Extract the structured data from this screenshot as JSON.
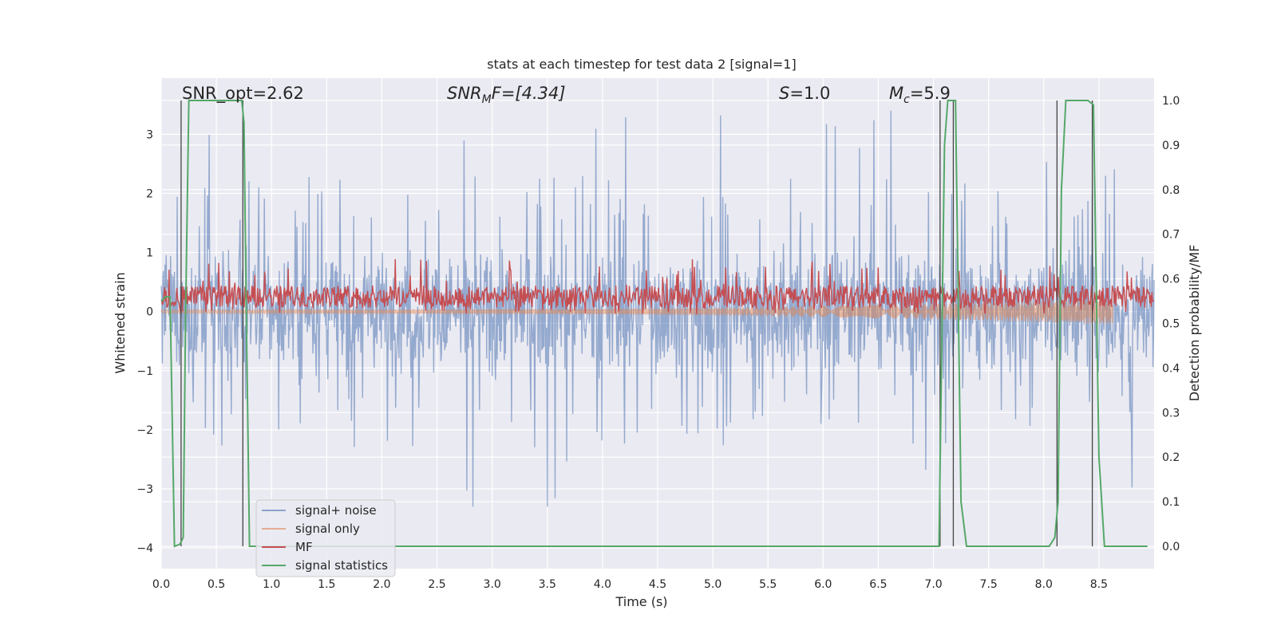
{
  "chart_data": {
    "type": "line",
    "title": "stats at each timestep for test data 2 [signal=1]",
    "xlabel": "Time (s)",
    "ylabel_left": "Whitened strain",
    "ylabel_right": "Detection probability/MF",
    "xlim": [
      0.0,
      9.0
    ],
    "ylim_left": [
      -4.35,
      3.95
    ],
    "ylim_right": [
      -0.05,
      1.05
    ],
    "x_ticks": [
      "0.0",
      "0.5",
      "1.0",
      "1.5",
      "2.0",
      "2.5",
      "3.0",
      "3.5",
      "4.0",
      "4.5",
      "5.0",
      "5.5",
      "6.0",
      "6.5",
      "7.0",
      "7.5",
      "8.0",
      "8.5"
    ],
    "y_ticks_left": [
      "3",
      "2",
      "1",
      "0",
      "−1",
      "−2",
      "−3",
      "−4"
    ],
    "y_ticks_right": [
      "1.0",
      "0.9",
      "0.8",
      "0.7",
      "0.6",
      "0.5",
      "0.4",
      "0.3",
      "0.2",
      "0.1",
      "0.0"
    ],
    "grid": true,
    "legend_position": "lower-left",
    "annotations": {
      "snr_opt": "SNR_opt=2.62",
      "snr_mf_base": "SNR",
      "snr_mf_sub": "M",
      "snr_mf_rest": "F=[4.34]",
      "s_var": "S",
      "s_rest": "=1.0",
      "mc_var": "M",
      "mc_sub": "c",
      "mc_rest": "=5.9"
    },
    "series": [
      {
        "name": "signal+ noise",
        "color": "#4c72b0",
        "axis": "left",
        "envelope_core": [
          -1.7,
          1.3
        ],
        "peak_range": [
          -3.3,
          3.6
        ]
      },
      {
        "name": "signal only",
        "color": "#dd8452",
        "axis": "left",
        "amplitude_start": 0.03,
        "amplitude_end": 0.22,
        "end_time": 8.63
      },
      {
        "name": "MF",
        "color": "#c44e52",
        "axis": "right",
        "baseline": 0.55,
        "band": [
          0.535,
          0.585
        ],
        "peak_max": 0.645
      },
      {
        "name": "signal statistics",
        "color": "#55a868",
        "axis": "right",
        "x": [
          0.0,
          0.04,
          0.08,
          0.12,
          0.17,
          0.2,
          0.22,
          0.25,
          0.3,
          0.35,
          0.4,
          0.45,
          0.5,
          0.55,
          0.6,
          0.65,
          0.7,
          0.73,
          0.75,
          0.77,
          0.8,
          0.85,
          0.9,
          1.0,
          2.0,
          3.0,
          4.0,
          5.0,
          6.0,
          7.0,
          7.05,
          7.1,
          7.13,
          7.16,
          7.2,
          7.25,
          7.3,
          7.35,
          7.5,
          7.8,
          8.05,
          8.1,
          8.13,
          8.16,
          8.2,
          8.25,
          8.3,
          8.4,
          8.45,
          8.5,
          8.55,
          8.6,
          8.7,
          8.94
        ],
        "y": [
          0.55,
          0.56,
          0.56,
          0.0,
          0.005,
          0.02,
          0.5,
          1.0,
          1.0,
          1.0,
          1.0,
          1.0,
          1.0,
          1.0,
          1.0,
          1.0,
          1.0,
          1.0,
          0.95,
          0.55,
          0.0,
          0.0,
          0.0,
          0.0,
          0.0,
          0.0,
          0.0,
          0.0,
          0.0,
          0.0,
          0.0,
          0.9,
          1.0,
          1.0,
          1.0,
          0.1,
          0.0,
          0.0,
          0.0,
          0.0,
          0.0,
          0.02,
          0.1,
          0.8,
          1.0,
          1.0,
          1.0,
          1.0,
          0.99,
          0.2,
          0.0,
          0.0,
          0.0,
          0.0
        ]
      }
    ],
    "vertical_markers": [
      0.18,
      0.74,
      7.06,
      7.18,
      8.12,
      8.44
    ]
  }
}
